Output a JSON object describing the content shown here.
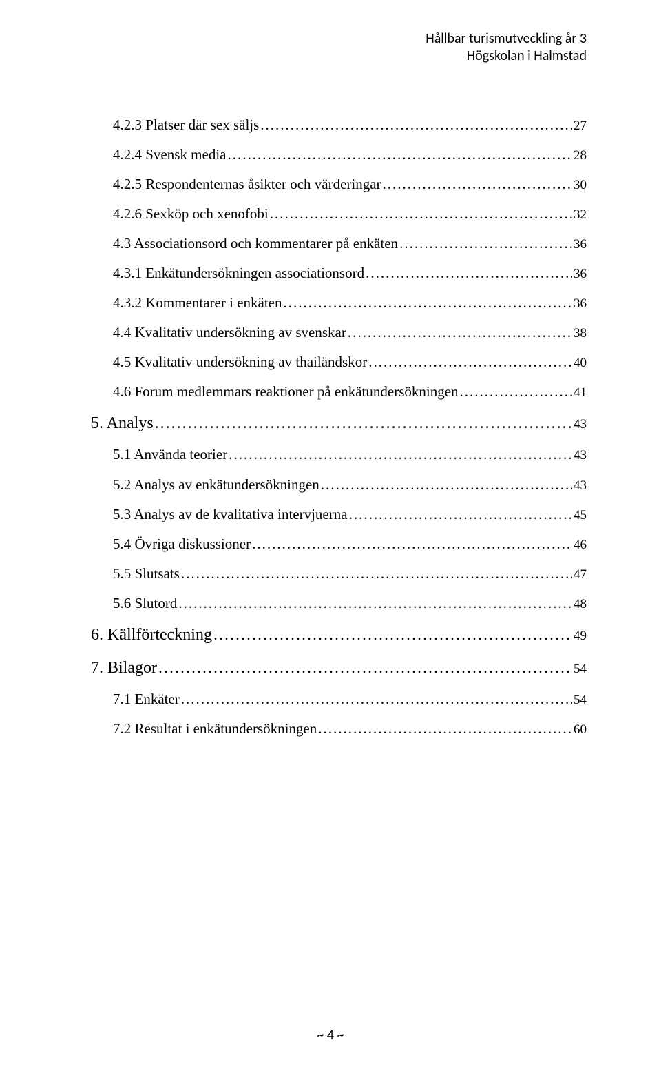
{
  "header": {
    "line1": "Hållbar turismutveckling år 3",
    "line2": "Högskolan i Halmstad"
  },
  "toc": {
    "entries": [
      {
        "level": 2,
        "title": "4.2.3 Platser där sex säljs",
        "page": "27"
      },
      {
        "level": 2,
        "title": "4.2.4 Svensk media",
        "page": "28"
      },
      {
        "level": 2,
        "title": "4.2.5 Respondenternas åsikter och värderingar",
        "page": "30"
      },
      {
        "level": 2,
        "title": "4.2.6 Sexköp och xenofobi",
        "page": "32"
      },
      {
        "level": 2,
        "title": "4.3 Associationsord och kommentarer på enkäten",
        "page": "36"
      },
      {
        "level": 2,
        "title": "4.3.1 Enkätundersökningen associationsord",
        "page": "36"
      },
      {
        "level": 2,
        "title": "4.3.2 Kommentarer i enkäten",
        "page": "36"
      },
      {
        "level": 2,
        "title": "4.4 Kvalitativ undersökning av svenskar",
        "page": "38"
      },
      {
        "level": 2,
        "title": "4.5 Kvalitativ undersökning av thailändskor",
        "page": "40"
      },
      {
        "level": 2,
        "title": "4.6 Forum medlemmars reaktioner på enkätundersökningen",
        "page": "41"
      },
      {
        "level": 1,
        "title": "5. Analys",
        "page": "43"
      },
      {
        "level": 2,
        "title": "5.1 Använda teorier",
        "page": "43"
      },
      {
        "level": 2,
        "title": "5.2 Analys av enkätundersökningen",
        "page": "43"
      },
      {
        "level": 2,
        "title": "5.3 Analys av de kvalitativa intervjuerna",
        "page": "45"
      },
      {
        "level": 2,
        "title": "5.4 Övriga diskussioner",
        "page": "46"
      },
      {
        "level": 2,
        "title": "5.5 Slutsats",
        "page": "47"
      },
      {
        "level": 2,
        "title": "5.6 Slutord",
        "page": "48"
      },
      {
        "level": 1,
        "title": "6. Källförteckning",
        "page": "49"
      },
      {
        "level": 1,
        "title": "7. Bilagor",
        "page": "54"
      },
      {
        "level": 2,
        "title": "7.1 Enkäter",
        "page": "54"
      },
      {
        "level": 2,
        "title": "7.2 Resultat i enkätundersökningen",
        "page": "60"
      }
    ]
  },
  "footer": {
    "pagenum": "~ 4 ~"
  }
}
